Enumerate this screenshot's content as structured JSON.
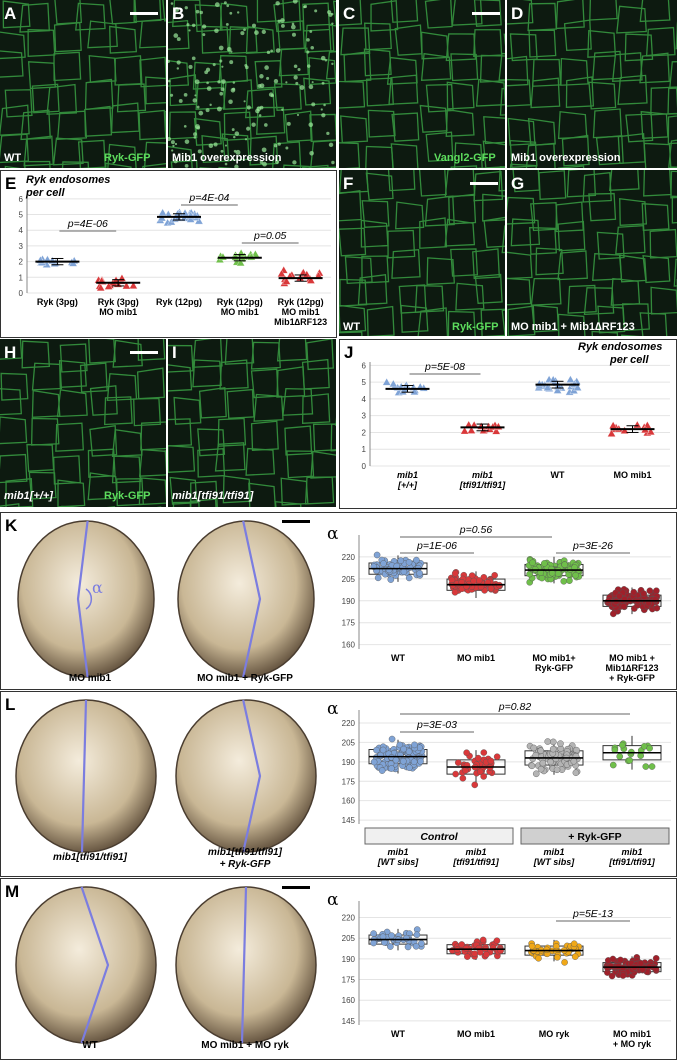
{
  "panels": {
    "A": {
      "letter": "A",
      "label_left": "WT",
      "label_right": "Ryk-GFP"
    },
    "B": {
      "letter": "B",
      "label_left": "Mib1 overexpression"
    },
    "C": {
      "letter": "C",
      "label_right": "Vangl2-GFP"
    },
    "D": {
      "letter": "D",
      "label_left": "Mib1 overexpression"
    },
    "F": {
      "letter": "F",
      "label_left": "WT",
      "label_right": "Ryk-GFP"
    },
    "G": {
      "letter": "G",
      "label_left": "MO mib1 + Mib1∆RF123"
    },
    "H": {
      "letter": "H",
      "label_left": "mib1[+/+]",
      "label_right": "Ryk-GFP"
    },
    "I": {
      "letter": "I",
      "label_left": "mib1[tfi91/tfi91]"
    }
  },
  "E": {
    "letter": "E",
    "title1": "Ryk endosomes",
    "title2": "per cell",
    "yticks": [
      "0",
      "1",
      "2",
      "3",
      "4",
      "5",
      "6"
    ],
    "pvals": [
      "p=4E-06",
      "p=4E-04",
      "p=0.05"
    ],
    "xlabels": [
      [
        "Ryk (3pg)"
      ],
      [
        "Ryk (3pg)",
        "MO mib1"
      ],
      [
        "Ryk (12pg)"
      ],
      [
        "Ryk (12pg)",
        "MO mib1"
      ],
      [
        "Ryk (12pg)",
        "MO mib1",
        "Mib1∆RF123"
      ]
    ]
  },
  "J": {
    "letter": "J",
    "title1": "Ryk endosomes",
    "title2": "per cell",
    "yticks": [
      "0",
      "1",
      "2",
      "3",
      "4",
      "5",
      "6"
    ],
    "pvals": [
      "p=5E-08"
    ],
    "xlabels": [
      [
        "mib1",
        "[+/+]"
      ],
      [
        "mib1",
        "[tfi91/tfi91]"
      ],
      [
        "WT"
      ],
      [
        "MO mib1"
      ]
    ]
  },
  "K": {
    "letter": "K",
    "alpha": "α",
    "embryo_labels": [
      "MO mib1",
      "MO mib1 + Ryk-GFP"
    ],
    "yticks": [
      "160",
      "175",
      "190",
      "205",
      "220"
    ],
    "pvals": [
      "p=0.56",
      "p=1E-06",
      "p=3E-26"
    ],
    "xlabels": [
      [
        "WT"
      ],
      [
        "MO mib1"
      ],
      [
        "MO mib1+",
        "Ryk-GFP"
      ],
      [
        "MO mib1 +",
        "Mib1∆RF123",
        "+ Ryk-GFP"
      ]
    ]
  },
  "L": {
    "letter": "L",
    "alpha": "α",
    "embryo_labels": [
      [
        "mib1[tfi91/tfi91]"
      ],
      [
        "mib1[tfi91/tfi91]",
        "+ Ryk-GFP"
      ]
    ],
    "yticks": [
      "145",
      "160",
      "175",
      "190",
      "205",
      "220"
    ],
    "pvals": [
      "p=0.82",
      "p=3E-03"
    ],
    "groups": [
      "Control",
      "+ Ryk-GFP"
    ],
    "xlabels": [
      [
        "mib1",
        "[WT sibs]"
      ],
      [
        "mib1",
        "[tfi91/tfi91]"
      ],
      [
        "mib1",
        "[WT sibs]"
      ],
      [
        "mib1",
        "[tfi91/tfi91]"
      ]
    ]
  },
  "M": {
    "letter": "M",
    "alpha": "α",
    "embryo_labels": [
      "WT",
      "MO mib1 + MO ryk"
    ],
    "yticks": [
      "145",
      "160",
      "175",
      "190",
      "205",
      "220"
    ],
    "pvals": [
      "p=5E-13"
    ],
    "xlabels": [
      [
        "WT"
      ],
      [
        "MO mib1"
      ],
      [
        "MO ryk"
      ],
      [
        "MO mib1",
        "+ MO ryk"
      ]
    ]
  },
  "colors": {
    "blue": "#7fa3d6",
    "red": "#d9383a",
    "green": "#6fbf4a",
    "gray": "#b4b4b4",
    "orange": "#f0a818",
    "darkred": "#a0202a",
    "mic_green": "#3fb04a"
  },
  "chart_data": [
    {
      "panel": "E",
      "type": "scatter",
      "title": "Ryk endosomes per cell",
      "ylim": [
        0,
        6.5
      ],
      "categories": [
        "Ryk (3pg)",
        "Ryk (3pg) MO mib1",
        "Ryk (12pg)",
        "Ryk (12pg) MO mib1",
        "Ryk (12pg) MO mib1 Mib1∆RF123"
      ],
      "series": [
        {
          "values": [
            2.0,
            0.65,
            4.85,
            2.25,
            0.95
          ]
        }
      ]
    },
    {
      "panel": "J",
      "type": "scatter",
      "title": "Ryk endosomes per cell",
      "ylim": [
        0,
        6.2
      ],
      "categories": [
        "mib1 [+/+]",
        "mib1 [tfi91/tfi91]",
        "WT",
        "MO mib1"
      ],
      "series": [
        {
          "values": [
            4.6,
            2.3,
            4.85,
            2.2
          ]
        }
      ]
    },
    {
      "panel": "K",
      "type": "scatter",
      "ylim": [
        157,
        235
      ],
      "categories": [
        "WT",
        "MO mib1",
        "MO mib1+ Ryk-GFP",
        "MO mib1 + Mib1∆RF123 + Ryk-GFP"
      ],
      "series": [
        {
          "values": [
            212,
            201,
            211,
            190
          ]
        }
      ]
    },
    {
      "panel": "L",
      "type": "scatter",
      "ylim": [
        142,
        230
      ],
      "categories": [
        "mib1 [WT sibs]",
        "mib1 [tfi91/tfi91]",
        "mib1 [WT sibs]",
        "mib1 [tfi91/tfi91]"
      ],
      "series": [
        {
          "values": [
            194,
            186,
            193,
            197
          ]
        }
      ]
    },
    {
      "panel": "M",
      "type": "scatter",
      "ylim": [
        142,
        232
      ],
      "categories": [
        "WT",
        "MO mib1",
        "MO ryk",
        "MO mib1 + MO ryk"
      ],
      "series": [
        {
          "values": [
            204,
            197,
            196,
            184
          ]
        }
      ]
    }
  ]
}
